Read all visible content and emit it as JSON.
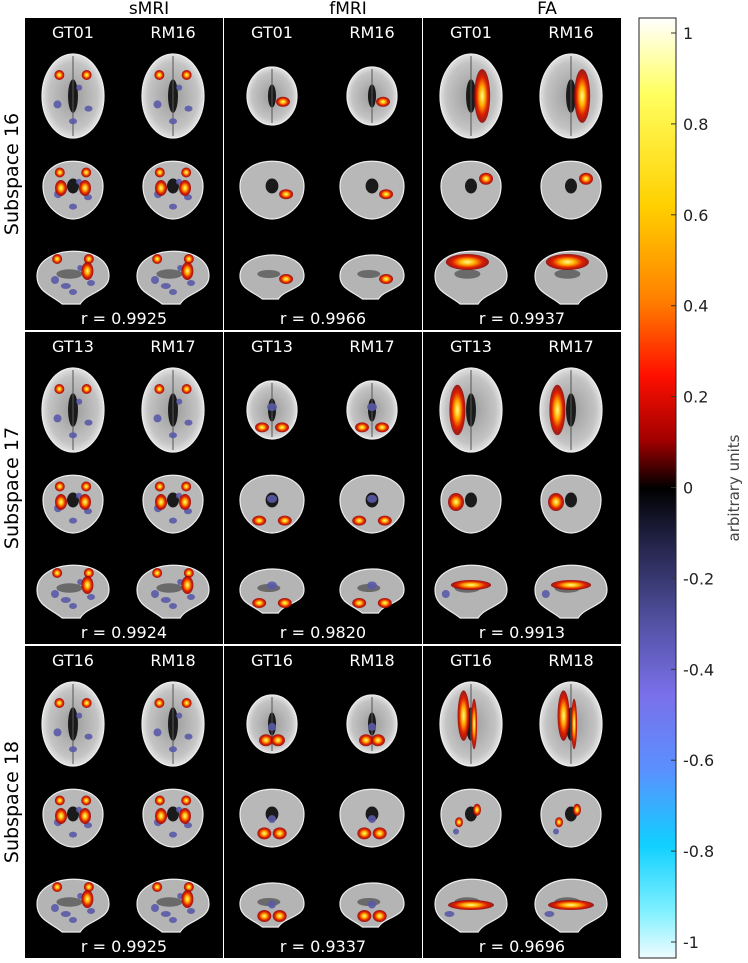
{
  "modalities": [
    "sMRI",
    "fMRI",
    "FA"
  ],
  "subspaces": [
    "Subspace 16",
    "Subspace 17",
    "Subspace 18"
  ],
  "cells": [
    [
      {
        "left": "GT01",
        "right": "RM16",
        "r": "r = 0.9925"
      },
      {
        "left": "GT01",
        "right": "RM16",
        "r": "r = 0.9966"
      },
      {
        "left": "GT01",
        "right": "RM16",
        "r": "r = 0.9937"
      }
    ],
    [
      {
        "left": "GT13",
        "right": "RM17",
        "r": "r = 0.9924"
      },
      {
        "left": "GT13",
        "right": "RM17",
        "r": "r = 0.9820"
      },
      {
        "left": "GT13",
        "right": "RM17",
        "r": "r = 0.9913"
      }
    ],
    [
      {
        "left": "GT16",
        "right": "RM18",
        "r": "r = 0.9925"
      },
      {
        "left": "GT16",
        "right": "RM18",
        "r": "r = 0.9337"
      },
      {
        "left": "GT16",
        "right": "RM18",
        "r": "r = 0.9696"
      }
    ]
  ],
  "colorbar": {
    "label": "arbitrary units",
    "ticks": [
      "1",
      "0.8",
      "0.6",
      "0.4",
      "0.2",
      "0",
      "-0.2",
      "-0.4",
      "-0.6",
      "-0.8",
      "-1"
    ],
    "range": [
      -1,
      1
    ]
  }
}
